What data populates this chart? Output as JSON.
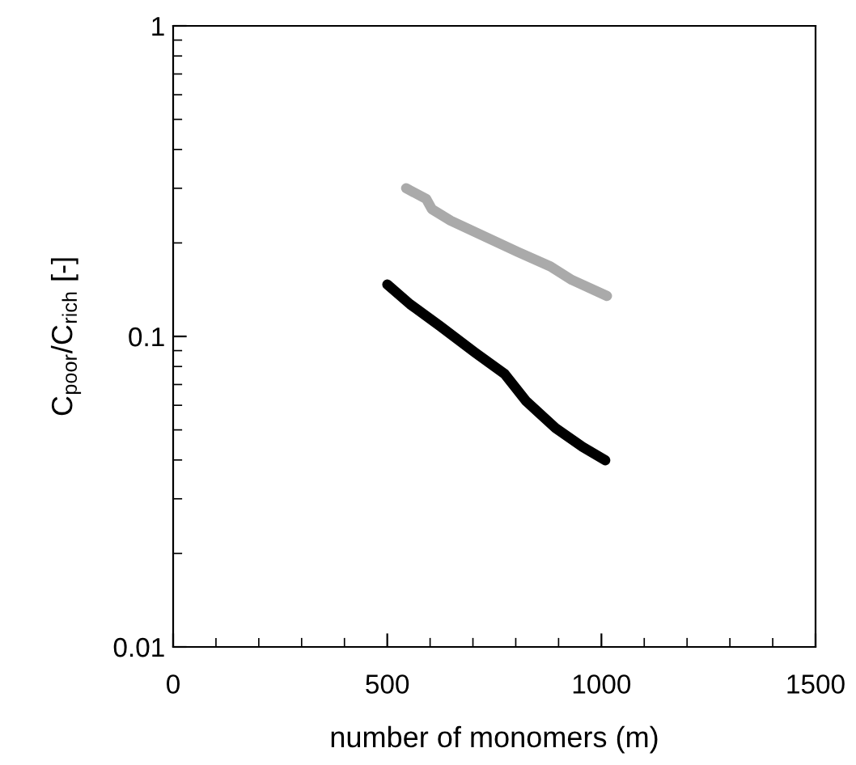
{
  "chart_data": {
    "type": "line",
    "xlabel": "number of monomers (m)",
    "ylabel": "C$_{poor}$/C$_{rich}$ [-]",
    "log": "y",
    "grid": false,
    "marker": "none",
    "line_style": "solid",
    "xlim": [
      0,
      1500
    ],
    "xticks": [
      0,
      500,
      1000,
      1500
    ],
    "ylim": [
      0.01,
      1
    ],
    "yticks": [
      0.01,
      0.1,
      1
    ],
    "series": [
      {
        "color": "#000000",
        "x": [
          500,
          553,
          623,
          705,
          774,
          824,
          893,
          956,
          1009
        ],
        "values": [
          0.147,
          0.127,
          0.108,
          0.0887,
          0.0757,
          0.0619,
          0.0507,
          0.0441,
          0.0399
        ]
      },
      {
        "color": "#aaaaaa",
        "x": [
          544,
          591,
          604,
          648,
          730,
          805,
          881,
          931,
          1013
        ],
        "values": [
          0.3,
          0.277,
          0.257,
          0.236,
          0.209,
          0.187,
          0.168,
          0.152,
          0.135
        ]
      }
    ]
  }
}
